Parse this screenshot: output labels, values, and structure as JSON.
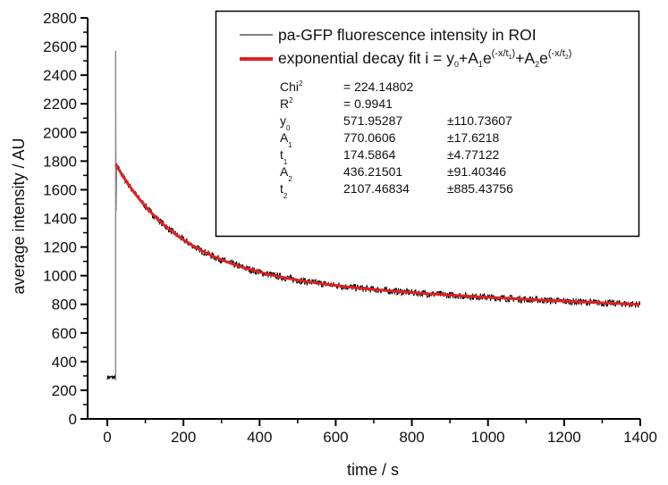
{
  "chart_data": {
    "type": "line",
    "title": "",
    "xlabel": "time / s",
    "ylabel": "average intensity / AU",
    "xlim": [
      -50,
      1400
    ],
    "ylim": [
      0,
      2800
    ],
    "x_ticks": [
      0,
      200,
      400,
      600,
      800,
      1000,
      1200,
      1400
    ],
    "x_tick_labels": [
      "0",
      "200",
      "400",
      "600",
      "800",
      "1000",
      "1200",
      "1400"
    ],
    "y_ticks": [
      0,
      200,
      400,
      600,
      800,
      1000,
      1200,
      1400,
      1600,
      1800,
      2000,
      2200,
      2400,
      2600,
      2800
    ],
    "y_tick_labels": [
      "0",
      "200",
      "400",
      "600",
      "800",
      "1000",
      "1200",
      "1400",
      "1600",
      "1800",
      "2000",
      "2200",
      "2400",
      "2600",
      "2800"
    ],
    "x_minor_step": 100,
    "y_minor_step": 100,
    "grid": false,
    "legend_position": "top-right",
    "series": [
      {
        "name": "pa-GFP fluorescence intensity in ROI",
        "color": "#000000",
        "style": "noisy-trace",
        "pre_activation": {
          "x_range": [
            0,
            22
          ],
          "level": 290
        },
        "spike": {
          "x": 22,
          "peak": 2570
        },
        "decay_start_x": 22,
        "decay_end_x": 1400
      },
      {
        "name": "exponential decay fit",
        "color": "#e02020",
        "style": "thick-line",
        "model": "y0 + A1*exp(-x/t1) + A2*exp(-x/t2)",
        "x_range": [
          22,
          1400
        ],
        "params": {
          "y0": 571.95287,
          "A1": 770.0606,
          "t1": 174.5864,
          "A2": 436.21501,
          "t2": 2107.46834
        }
      }
    ],
    "legend": {
      "entries": [
        {
          "label": "pa-GFP fluorescence intensity in ROI",
          "color": "#000000"
        },
        {
          "label_prefix": "exponential decay fit i = y",
          "formula": "y0+A1e^(-x/t1)+A2e^(-x/t2)",
          "color": "#e02020"
        }
      ],
      "stats": [
        {
          "name": "Chi",
          "sup": "2",
          "value": "= 224.14802",
          "error": ""
        },
        {
          "name": "R",
          "sup": "2",
          "value": "= 0.9941",
          "error": ""
        },
        {
          "name": "y",
          "sub": "0",
          "value": "571.95287",
          "error": "±110.73607"
        },
        {
          "name": "A",
          "sub": "1",
          "value": "770.0606",
          "error": "±17.6218"
        },
        {
          "name": "t",
          "sub": "1",
          "value": "174.5864",
          "error": "±4.77122"
        },
        {
          "name": "A",
          "sub": "2",
          "value": "436.21501",
          "error": "±91.40346"
        },
        {
          "name": "t",
          "sub": "2",
          "value": "2107.46834",
          "error": "±885.43756"
        }
      ]
    }
  },
  "legend_text": {
    "entry1": "pa-GFP fluorescence intensity in ROI",
    "entry2_a": "exponential decay fit i = y",
    "entry2_sub0": "0",
    "entry2_b": "+A",
    "entry2_sub1": "1",
    "entry2_c": "e",
    "entry2_exp1": "(-x/t",
    "entry2_exp1_sub": "1",
    "entry2_exp_close": ")",
    "entry2_d": "+A",
    "entry2_sub2": "2",
    "entry2_e": "e",
    "entry2_exp2": "(-x/t",
    "entry2_exp2_sub": "2"
  }
}
